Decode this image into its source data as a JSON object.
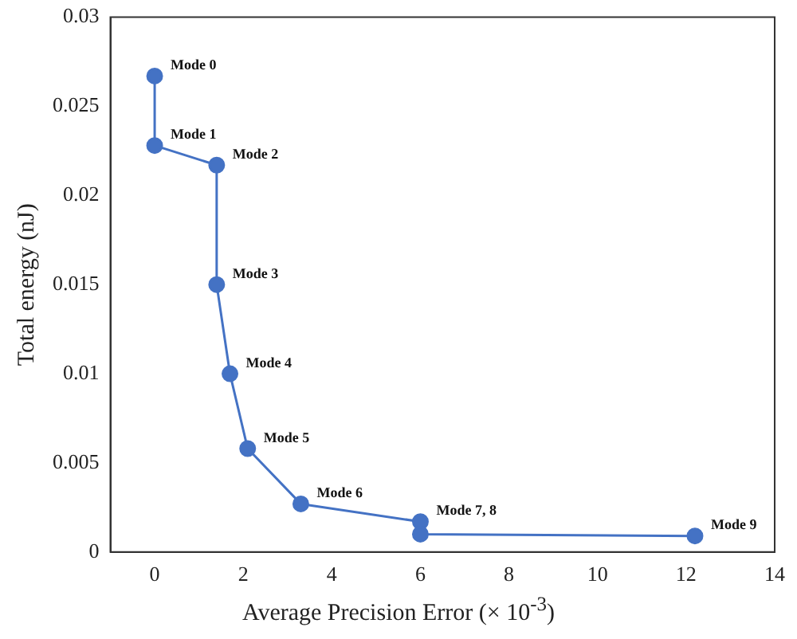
{
  "chart_data": {
    "type": "line",
    "xlabel": "Average Precision Error (× 10$^{-3}$)",
    "ylabel": "Total energy (nJ)",
    "series": [
      {
        "color": "#4472c4",
        "x": [
          0,
          0,
          1.4,
          1.4,
          1.7,
          2.1,
          3.3,
          6,
          6,
          12.2
        ],
        "values": [
          0.0267,
          0.0228,
          0.0217,
          0.015,
          0.01,
          0.0058,
          0.0027,
          0.0017,
          0.001,
          0.0009
        ]
      }
    ],
    "xlim": [
      -1,
      14
    ],
    "xticks": [
      0,
      2,
      4,
      6,
      8,
      10,
      12,
      14
    ],
    "ylim": [
      0,
      0.03
    ],
    "yticks": [
      0,
      0.005,
      0.01,
      0.015,
      0.02,
      0.025,
      0.03
    ],
    "grid": false,
    "legend": false,
    "marker": "circle",
    "line_style": "solid",
    "annotations": [
      {
        "text": "Mode 0",
        "x": 0,
        "y": 0.0267
      },
      {
        "text": "Mode 1",
        "x": 0,
        "y": 0.0228
      },
      {
        "text": "Mode 2",
        "x": 1.4,
        "y": 0.0217
      },
      {
        "text": "Mode 3",
        "x": 1.4,
        "y": 0.015
      },
      {
        "text": "Mode 4",
        "x": 1.7,
        "y": 0.01
      },
      {
        "text": "Mode 5",
        "x": 2.1,
        "y": 0.0058
      },
      {
        "text": "Mode 6",
        "x": 3.3,
        "y": 0.0027
      },
      {
        "text": "Mode 7, 8",
        "x": 6,
        "y": 0.0017
      },
      {
        "text": "Mode 9",
        "x": 12.2,
        "y": 0.0009
      }
    ]
  }
}
